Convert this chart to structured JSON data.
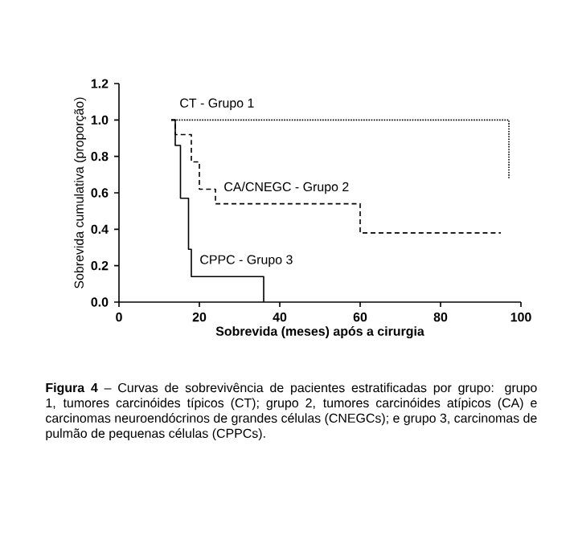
{
  "chart_data": {
    "type": "step",
    "xlabel": "Sobrevida (meses) após a cirurgia",
    "ylabel": "Sobrevida cumulativa (proporção)",
    "xlim": [
      0,
      100
    ],
    "xticks": [
      0,
      20,
      40,
      60,
      80,
      100
    ],
    "ylim": [
      0,
      1.2
    ],
    "yticks": [
      {
        "value": 0,
        "label": "0.0"
      },
      {
        "value": 0.2,
        "label": "0.2"
      },
      {
        "value": 0.4,
        "label": "0.4"
      },
      {
        "value": 0.6,
        "label": "0.6"
      },
      {
        "value": 0.8,
        "label": "0.8"
      },
      {
        "value": 1.0,
        "label": "1.0"
      },
      {
        "value": 1.2,
        "label": "1.2"
      }
    ],
    "grid": false,
    "legend": false,
    "series": [
      {
        "name": "CT - Grupo 1",
        "color": "#000000",
        "line_style": "dotted",
        "x": [
          13,
          97
        ],
        "values": [
          1.0,
          0.68
        ]
      },
      {
        "name": "CA/CNEGC - Grupo 2",
        "color": "#000000",
        "line_style": "dashed",
        "x": [
          13,
          14,
          18,
          20,
          24,
          60,
          95
        ],
        "values": [
          1.0,
          0.92,
          0.77,
          0.62,
          0.54,
          0.38,
          0.38
        ]
      },
      {
        "name": "CPPC - Grupo 3",
        "color": "#000000",
        "line_style": "solid",
        "x": [
          13,
          14,
          15.3,
          17.3,
          18,
          36
        ],
        "values": [
          1.0,
          0.86,
          0.57,
          0.29,
          0.14,
          0.0
        ]
      }
    ],
    "annotations": [
      "**Figura 4** – Curvas de sobrevivência de pacientes estratificadas por grupo: grupo 1, tumores carcinóides típicos (CT); grupo 2, tumores carcinóides atípicos (CA) e carcinomas neuroendócrinos de grandes células (CNEGCs); e grupo 3, carcinomas de pulmão de pequenas células (CPPCs)."
    ]
  }
}
